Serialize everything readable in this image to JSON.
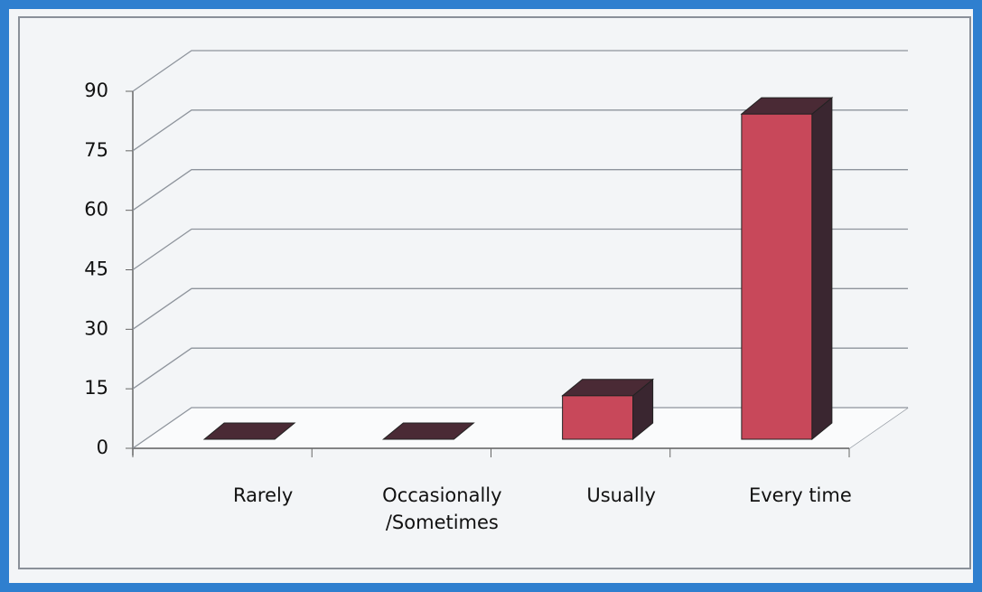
{
  "chart_data": {
    "type": "bar3d",
    "categories": [
      "Rarely",
      "Occasionally\n/Sometimes",
      "Usually",
      "Every time"
    ],
    "values": [
      0,
      0,
      11,
      82
    ],
    "color": "#c8485a",
    "ylim": [
      0,
      90
    ],
    "yticks": [
      0,
      15,
      30,
      45,
      60,
      75,
      90
    ],
    "grid": true
  }
}
